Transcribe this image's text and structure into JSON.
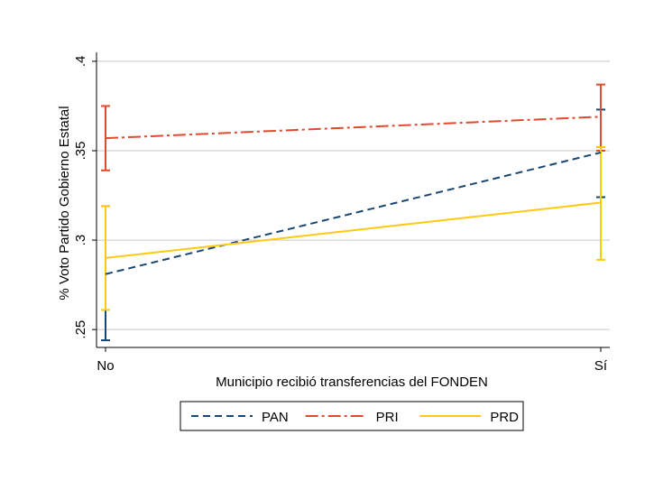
{
  "chart_data": {
    "type": "line",
    "title": "",
    "xlabel": "Municipio recibió transferencias del FONDEN",
    "ylabel": "% Voto Partido Gobierno Estatal",
    "categories": [
      "No",
      "Sí"
    ],
    "ylim": [
      0.24,
      0.405
    ],
    "yticks": [
      {
        "value": 0.25,
        "label": ".25"
      },
      {
        "value": 0.3,
        "label": ".3"
      },
      {
        "value": 0.35,
        "label": ".35"
      },
      {
        "value": 0.4,
        "label": ".4"
      }
    ],
    "grid": true,
    "legend_position": "bottom",
    "series": [
      {
        "name": "PAN",
        "color": "#1a476f",
        "dash": "dash",
        "values": [
          0.281,
          0.349
        ],
        "ci_low": [
          0.244,
          0.324
        ],
        "ci_high": [
          0.319,
          0.373
        ]
      },
      {
        "name": "PRI",
        "color": "#e04a2f",
        "dash": "dashdot",
        "values": [
          0.357,
          0.369
        ],
        "ci_low": [
          0.339,
          0.35
        ],
        "ci_high": [
          0.375,
          0.387
        ]
      },
      {
        "name": "PRD",
        "color": "#ffc90e",
        "dash": "solid",
        "values": [
          0.29,
          0.321
        ],
        "ci_low": [
          0.261,
          0.289
        ],
        "ci_high": [
          0.319,
          0.352
        ]
      }
    ]
  }
}
